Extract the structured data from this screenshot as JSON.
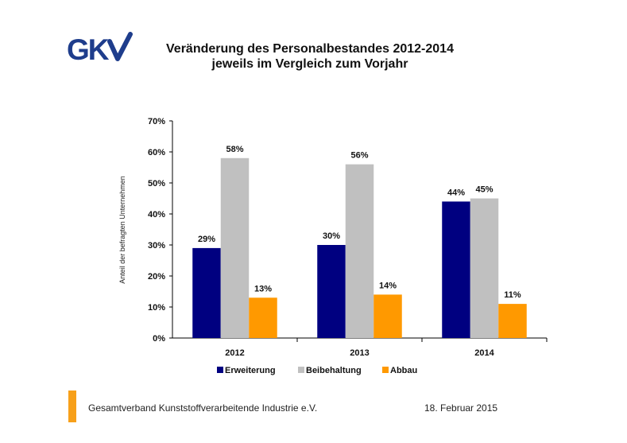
{
  "logo": {
    "text": "GKV",
    "color": "#1e3d8c"
  },
  "header": {
    "title_line1": "Veränderung des Personalbestandes 2012-2014",
    "title_line2": "jeweils im Vergleich zum Vorjahr"
  },
  "footer": {
    "organization": "Gesamtverband Kunststoffverarbeitende Industrie e.V.",
    "date": "18. Februar 2015",
    "accent_color": "#f7a01a"
  },
  "chart_data": {
    "type": "bar",
    "title": "Veränderung des Personalbestandes 2012-2014 jeweils im Vergleich zum Vorjahr",
    "ylabel": "Anteil der befragten Unternehmen",
    "xlabel": "",
    "categories": [
      "2012",
      "2013",
      "2014"
    ],
    "ylim": [
      0,
      70
    ],
    "yticks": [
      "0%",
      "10%",
      "20%",
      "30%",
      "40%",
      "50%",
      "60%",
      "70%"
    ],
    "grid": false,
    "legend_position": "bottom",
    "series": [
      {
        "name": "Erweiterung",
        "color": "#000080",
        "values": [
          29,
          30,
          44
        ],
        "labels": [
          "29%",
          "30%",
          "44%"
        ]
      },
      {
        "name": "Beibehaltung",
        "color": "#c0c0c0",
        "values": [
          58,
          56,
          45
        ],
        "labels": [
          "58%",
          "56%",
          "45%"
        ]
      },
      {
        "name": "Abbau",
        "color": "#ff9900",
        "values": [
          13,
          14,
          11
        ],
        "labels": [
          "13%",
          "14%",
          "11%"
        ]
      }
    ]
  }
}
